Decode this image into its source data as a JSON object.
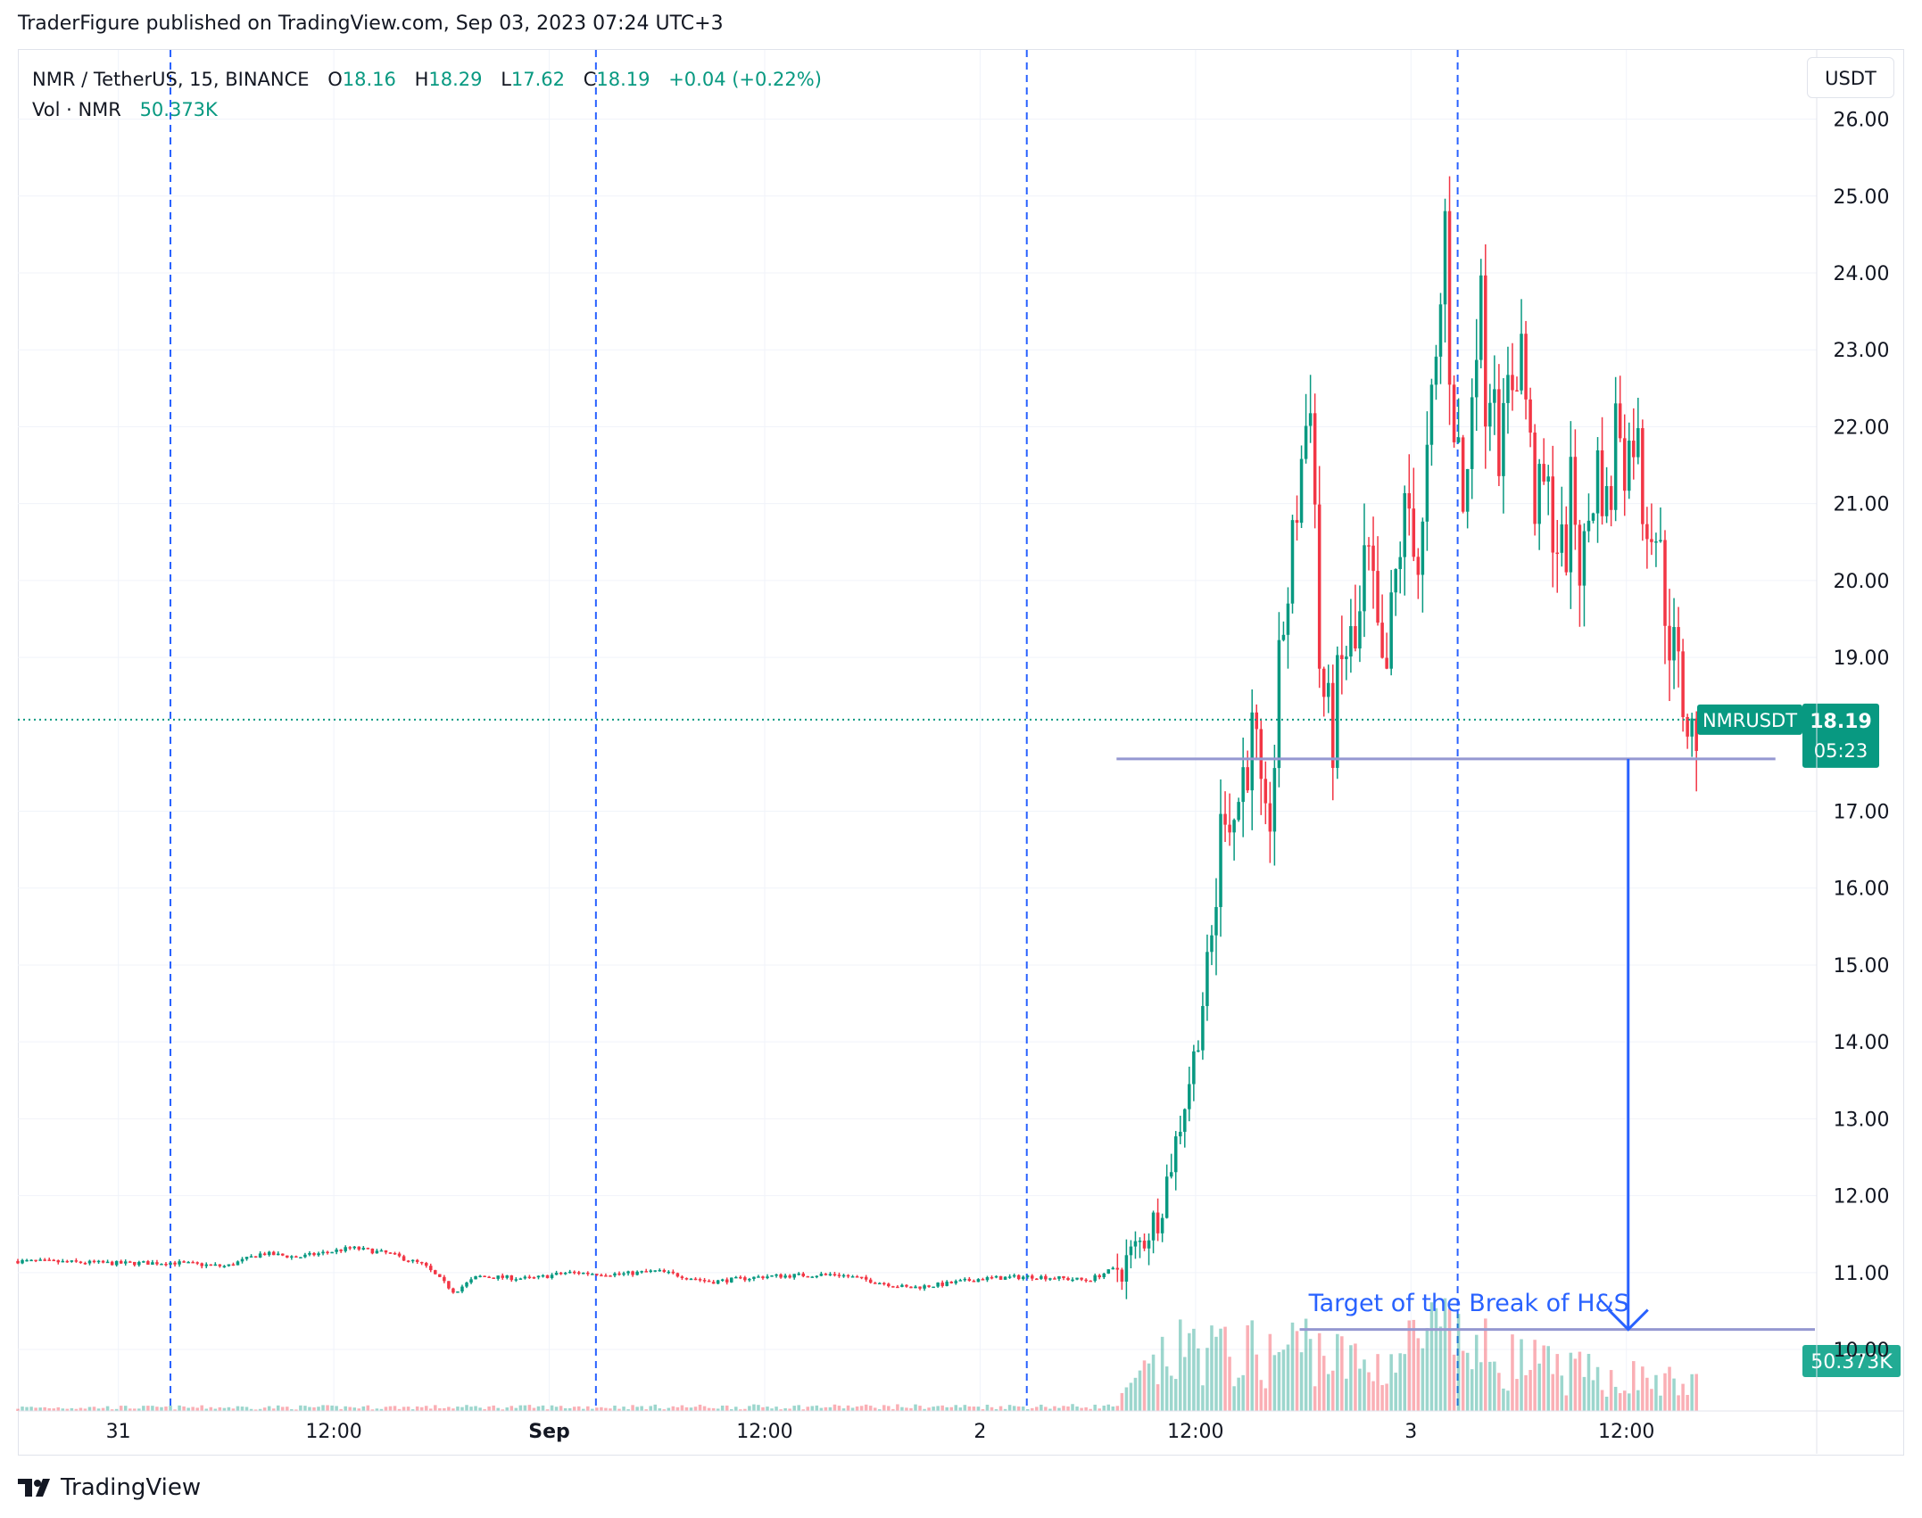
{
  "header": {
    "published": "TraderFigure published on TradingView.com, Sep 03, 2023 07:24 UTC+3"
  },
  "legend": {
    "symbol": "NMR / TetherUS, 15, BINANCE",
    "o_label": "O",
    "o_value": "18.16",
    "h_label": "H",
    "h_value": "18.29",
    "l_label": "L",
    "l_value": "17.62",
    "c_label": "C",
    "c_value": "18.19",
    "change": "+0.04 (+0.22%)",
    "vol_label": "Vol · NMR",
    "vol_value": "50.373K"
  },
  "toolbar": {
    "currency": "USDT"
  },
  "footer": {
    "brand": "TradingView"
  },
  "colors": {
    "up": "#089981",
    "down": "#f23645",
    "grid": "#f0f3fa",
    "accent_blue": "#2962ff",
    "level_line": "#9598d1",
    "text": "#131722"
  },
  "chart_data": {
    "type": "candlestick",
    "symbol": "NMRUSDT",
    "interval": "15",
    "exchange": "BINANCE",
    "x_ticks": [
      "31",
      "12:00",
      "Sep",
      "12:00",
      "2",
      "12:00",
      "3",
      "12:00"
    ],
    "x_tick_hours": [
      0,
      12,
      24,
      36,
      48,
      60,
      72,
      84
    ],
    "x_range_hours": [
      -5.6,
      94.6
    ],
    "y_ticks": [
      "26.00",
      "25.00",
      "24.00",
      "23.00",
      "22.00",
      "21.00",
      "20.00",
      "19.00",
      "17.00",
      "16.00",
      "15.00",
      "14.00",
      "13.00",
      "12.00",
      "11.00",
      "10.00"
    ],
    "ylim": [
      9.2,
      26.9
    ],
    "current_price": 18.19,
    "price_label": "NMRUSDT",
    "price_value": "18.19",
    "countdown": "05:23",
    "volume_label": "50.373K",
    "session_separators_hours": [
      2.9,
      26.6,
      50.6,
      74.6
    ],
    "horizontal_levels": [
      {
        "price": 17.68,
        "x_from_hours": 55.6,
        "x_to_hours": 92.3
      },
      {
        "price": 10.26,
        "x_from_hours": 65.8,
        "x_to_hours": 94.5
      }
    ],
    "target_arrow": {
      "x_hours": 84.1,
      "from_price": 17.68,
      "to_price": 10.26
    },
    "annotation": {
      "text": "Target of the Break of H&S",
      "x_hours": 66.3,
      "price": 10.5
    },
    "volume_peak": 13.6,
    "price_path": [
      [
        -5.6,
        11.15
      ],
      [
        0,
        11.12
      ],
      [
        3,
        11.13
      ],
      [
        6,
        11.08
      ],
      [
        8,
        11.25
      ],
      [
        10,
        11.2
      ],
      [
        13,
        11.32
      ],
      [
        15,
        11.25
      ],
      [
        17,
        11.1
      ],
      [
        18.7,
        10.75
      ],
      [
        20,
        10.95
      ],
      [
        23,
        10.92
      ],
      [
        25,
        11.0
      ],
      [
        28,
        10.98
      ],
      [
        30,
        11.02
      ],
      [
        33,
        10.88
      ],
      [
        36,
        10.95
      ],
      [
        40,
        10.98
      ],
      [
        44,
        10.8
      ],
      [
        46,
        10.85
      ],
      [
        48,
        10.92
      ],
      [
        51,
        10.95
      ],
      [
        54,
        10.9
      ],
      [
        56,
        11.1
      ],
      [
        57,
        11.4
      ],
      [
        58,
        11.8
      ],
      [
        59,
        12.8
      ],
      [
        60,
        13.9
      ],
      [
        61,
        15.5
      ],
      [
        61.6,
        17.3
      ],
      [
        62.2,
        16.9
      ],
      [
        62.8,
        17.7
      ],
      [
        63.3,
        18.0
      ],
      [
        63.8,
        16.4
      ],
      [
        64.3,
        17.3
      ],
      [
        64.8,
        19.3
      ],
      [
        65.3,
        20.1
      ],
      [
        65.8,
        21.4
      ],
      [
        66.2,
        22.1
      ],
      [
        66.5,
        22.8
      ],
      [
        66.8,
        19.1
      ],
      [
        67.2,
        18.4
      ],
      [
        67.6,
        17.9
      ],
      [
        68.0,
        18.7
      ],
      [
        68.5,
        19.2
      ],
      [
        69.0,
        19.0
      ],
      [
        69.5,
        20.4
      ],
      [
        70.0,
        19.5
      ],
      [
        70.5,
        18.4
      ],
      [
        71.0,
        19.7
      ],
      [
        71.5,
        20.7
      ],
      [
        72.0,
        21.0
      ],
      [
        72.5,
        20.0
      ],
      [
        73.0,
        21.8
      ],
      [
        73.5,
        22.9
      ],
      [
        73.9,
        24.7
      ],
      [
        74.2,
        22.5
      ],
      [
        74.6,
        21.8
      ],
      [
        75.0,
        20.6
      ],
      [
        75.4,
        22.6
      ],
      [
        75.8,
        23.9
      ],
      [
        76.2,
        22.3
      ],
      [
        76.6,
        23.0
      ],
      [
        77.0,
        21.5
      ],
      [
        77.4,
        22.4
      ],
      [
        77.8,
        22.8
      ],
      [
        78.2,
        23.1
      ],
      [
        78.6,
        21.7
      ],
      [
        79.0,
        20.9
      ],
      [
        79.5,
        21.2
      ],
      [
        80.0,
        20.7
      ],
      [
        80.5,
        20.2
      ],
      [
        81.0,
        21.3
      ],
      [
        81.5,
        20.0
      ],
      [
        82.0,
        21.0
      ],
      [
        82.5,
        21.6
      ],
      [
        83.0,
        20.7
      ],
      [
        83.5,
        22.4
      ],
      [
        84.0,
        21.5
      ],
      [
        84.5,
        22.1
      ],
      [
        85.0,
        20.8
      ],
      [
        85.5,
        21.0
      ],
      [
        86.0,
        20.0
      ],
      [
        86.5,
        19.2
      ],
      [
        87.0,
        18.6
      ],
      [
        87.4,
        18.2
      ],
      [
        87.7,
        17.9
      ],
      [
        88.0,
        18.19
      ]
    ],
    "volume_path": [
      [
        -5.6,
        0.15
      ],
      [
        55.5,
        0.2
      ],
      [
        56,
        0.6
      ],
      [
        57,
        1.5
      ],
      [
        58,
        2.0
      ],
      [
        59,
        2.5
      ],
      [
        60,
        2.9
      ],
      [
        61,
        2.7
      ],
      [
        62,
        2.3
      ],
      [
        63,
        2.6
      ],
      [
        64,
        2.3
      ],
      [
        65,
        2.8
      ],
      [
        66,
        3.0
      ],
      [
        67,
        2.7
      ],
      [
        68,
        2.3
      ],
      [
        69,
        2.1
      ],
      [
        70,
        2.0
      ],
      [
        71,
        2.3
      ],
      [
        72,
        2.9
      ],
      [
        73,
        3.4
      ],
      [
        74,
        3.2
      ],
      [
        75,
        2.9
      ],
      [
        76,
        2.6
      ],
      [
        77,
        2.4
      ],
      [
        78,
        2.2
      ],
      [
        79,
        2.0
      ],
      [
        80,
        1.8
      ],
      [
        81,
        1.7
      ],
      [
        82,
        1.6
      ],
      [
        83,
        1.5
      ],
      [
        84,
        1.5
      ],
      [
        85,
        1.4
      ],
      [
        86,
        1.3
      ],
      [
        87,
        1.2
      ],
      [
        88,
        1.1
      ]
    ]
  }
}
